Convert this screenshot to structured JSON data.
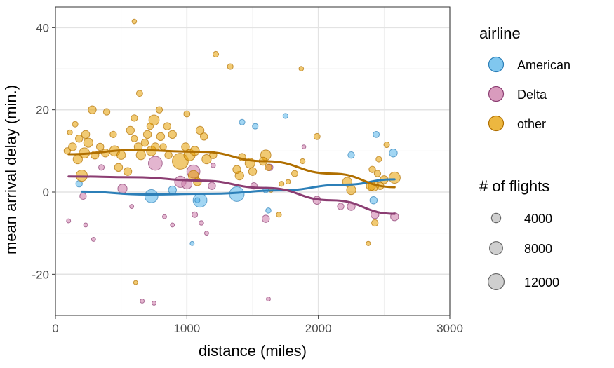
{
  "chart_data": {
    "type": "scatter",
    "xlabel": "distance (miles)",
    "ylabel": "mean arrival delay (min.)",
    "xlim": [
      0,
      3000
    ],
    "ylim": [
      -30,
      45
    ],
    "xticks": [
      0,
      1000,
      2000,
      3000
    ],
    "xtick_labels": [
      "0",
      "1000",
      "2000",
      "3000"
    ],
    "yticks": [
      -20,
      0,
      20,
      40
    ],
    "ytick_labels": [
      "-20",
      "0",
      "20",
      "40"
    ],
    "grid": true,
    "legend_color": {
      "title": "airline",
      "entries": [
        {
          "label": "American",
          "key": "american"
        },
        {
          "label": "Delta",
          "key": "delta"
        },
        {
          "label": "other",
          "key": "other"
        }
      ]
    },
    "legend_size": {
      "title": "# of flights",
      "entries": [
        {
          "label": "4000",
          "value": 4000
        },
        {
          "label": "8000",
          "value": 8000
        },
        {
          "label": "12000",
          "value": 12000
        }
      ]
    },
    "colors": {
      "american": {
        "fill": "#56B4E9",
        "line": "#2c7fb8"
      },
      "delta": {
        "fill": "#CC79A7",
        "line": "#8b3d72"
      },
      "other": {
        "fill": "#E69F00",
        "line": "#b06f00"
      }
    },
    "series": [
      {
        "key": "american",
        "points": [
          {
            "x": 180,
            "y": 2,
            "n": 2000
          },
          {
            "x": 730,
            "y": -1,
            "n": 8000
          },
          {
            "x": 890,
            "y": 0.5,
            "n": 3000
          },
          {
            "x": 1040,
            "y": -12.5,
            "n": 800
          },
          {
            "x": 1080,
            "y": -2,
            "n": 1200
          },
          {
            "x": 1100,
            "y": -2,
            "n": 9000
          },
          {
            "x": 1380,
            "y": -0.5,
            "n": 10000
          },
          {
            "x": 1420,
            "y": 17,
            "n": 1500
          },
          {
            "x": 1520,
            "y": 16,
            "n": 1500
          },
          {
            "x": 1600,
            "y": 0.5,
            "n": 1500
          },
          {
            "x": 1620,
            "y": -4.5,
            "n": 1300
          },
          {
            "x": 1750,
            "y": 18.5,
            "n": 1200
          },
          {
            "x": 2250,
            "y": 9,
            "n": 2000
          },
          {
            "x": 2420,
            "y": -2,
            "n": 2500
          },
          {
            "x": 2440,
            "y": 14,
            "n": 1800
          },
          {
            "x": 2570,
            "y": 9.5,
            "n": 3000
          }
        ],
        "trend": [
          [
            200,
            0.1
          ],
          [
            700,
            -0.6
          ],
          [
            1200,
            -0.4
          ],
          [
            1700,
            0.4
          ],
          [
            2200,
            1.8
          ],
          [
            2580,
            3.1
          ]
        ]
      },
      {
        "key": "delta",
        "points": [
          {
            "x": 100,
            "y": -7,
            "n": 800
          },
          {
            "x": 210,
            "y": -1,
            "n": 2000
          },
          {
            "x": 230,
            "y": -8,
            "n": 800
          },
          {
            "x": 290,
            "y": -11.5,
            "n": 800
          },
          {
            "x": 350,
            "y": 6,
            "n": 1500
          },
          {
            "x": 510,
            "y": 0.8,
            "n": 4000
          },
          {
            "x": 580,
            "y": -3.5,
            "n": 800
          },
          {
            "x": 660,
            "y": -26.5,
            "n": 800
          },
          {
            "x": 750,
            "y": -27,
            "n": 800
          },
          {
            "x": 760,
            "y": 7,
            "n": 9000
          },
          {
            "x": 830,
            "y": -6,
            "n": 800
          },
          {
            "x": 890,
            "y": -8,
            "n": 800
          },
          {
            "x": 950,
            "y": 2.5,
            "n": 6000
          },
          {
            "x": 1000,
            "y": 2,
            "n": 5000
          },
          {
            "x": 1050,
            "y": 5,
            "n": 8000
          },
          {
            "x": 1060,
            "y": -5.5,
            "n": 1500
          },
          {
            "x": 1110,
            "y": -7.5,
            "n": 1000
          },
          {
            "x": 1150,
            "y": -10,
            "n": 800
          },
          {
            "x": 1190,
            "y": 1.5,
            "n": 2500
          },
          {
            "x": 1200,
            "y": 6.5,
            "n": 1000
          },
          {
            "x": 1510,
            "y": 1.5,
            "n": 2000
          },
          {
            "x": 1600,
            "y": -6.5,
            "n": 2500
          },
          {
            "x": 1620,
            "y": -26,
            "n": 800
          },
          {
            "x": 1630,
            "y": 6,
            "n": 2000
          },
          {
            "x": 1890,
            "y": 11,
            "n": 700
          },
          {
            "x": 1990,
            "y": -2,
            "n": 3000
          },
          {
            "x": 2170,
            "y": -3.5,
            "n": 2000
          },
          {
            "x": 2250,
            "y": -3.5,
            "n": 3000
          },
          {
            "x": 2430,
            "y": -5.5,
            "n": 3000
          },
          {
            "x": 2580,
            "y": -6,
            "n": 3000
          }
        ],
        "trend": [
          [
            100,
            3.8
          ],
          [
            600,
            3.6
          ],
          [
            1100,
            2.8
          ],
          [
            1600,
            1.0
          ],
          [
            2100,
            -2.0
          ],
          [
            2580,
            -5.3
          ]
        ]
      },
      {
        "key": "other",
        "points": [
          {
            "x": 90,
            "y": 10,
            "n": 2000
          },
          {
            "x": 110,
            "y": 14.5,
            "n": 1200
          },
          {
            "x": 130,
            "y": 11,
            "n": 3000
          },
          {
            "x": 150,
            "y": 16.5,
            "n": 1500
          },
          {
            "x": 170,
            "y": 8,
            "n": 4000
          },
          {
            "x": 180,
            "y": 13,
            "n": 2500
          },
          {
            "x": 200,
            "y": 4,
            "n": 6000
          },
          {
            "x": 220,
            "y": 9.5,
            "n": 5000
          },
          {
            "x": 230,
            "y": 14,
            "n": 3000
          },
          {
            "x": 250,
            "y": 12,
            "n": 4000
          },
          {
            "x": 280,
            "y": 20,
            "n": 3000
          },
          {
            "x": 300,
            "y": 9,
            "n": 3000
          },
          {
            "x": 340,
            "y": 11,
            "n": 2500
          },
          {
            "x": 380,
            "y": 9.5,
            "n": 3000
          },
          {
            "x": 390,
            "y": 19.5,
            "n": 2000
          },
          {
            "x": 440,
            "y": 14,
            "n": 2000
          },
          {
            "x": 450,
            "y": 10,
            "n": 5000
          },
          {
            "x": 480,
            "y": 6,
            "n": 3000
          },
          {
            "x": 500,
            "y": 9,
            "n": 3500
          },
          {
            "x": 550,
            "y": 5,
            "n": 3000
          },
          {
            "x": 570,
            "y": 15,
            "n": 3000
          },
          {
            "x": 600,
            "y": 13,
            "n": 2000
          },
          {
            "x": 600,
            "y": 18,
            "n": 2000
          },
          {
            "x": 600,
            "y": 41.5,
            "n": 1000
          },
          {
            "x": 610,
            "y": -22,
            "n": 800
          },
          {
            "x": 630,
            "y": 11,
            "n": 3000
          },
          {
            "x": 640,
            "y": 24,
            "n": 1800
          },
          {
            "x": 650,
            "y": 9,
            "n": 4000
          },
          {
            "x": 680,
            "y": 12,
            "n": 2500
          },
          {
            "x": 700,
            "y": 14,
            "n": 3000
          },
          {
            "x": 720,
            "y": 16,
            "n": 2000
          },
          {
            "x": 730,
            "y": 10,
            "n": 4500
          },
          {
            "x": 750,
            "y": 17.5,
            "n": 5000
          },
          {
            "x": 760,
            "y": 11,
            "n": 3000
          },
          {
            "x": 790,
            "y": 20,
            "n": 2000
          },
          {
            "x": 800,
            "y": 13.5,
            "n": 3000
          },
          {
            "x": 820,
            "y": 11,
            "n": 2000
          },
          {
            "x": 850,
            "y": 16,
            "n": 2500
          },
          {
            "x": 860,
            "y": 9,
            "n": 2500
          },
          {
            "x": 890,
            "y": 14,
            "n": 3000
          },
          {
            "x": 950,
            "y": 7.5,
            "n": 12000
          },
          {
            "x": 990,
            "y": 11,
            "n": 3000
          },
          {
            "x": 1000,
            "y": 19,
            "n": 1800
          },
          {
            "x": 1020,
            "y": 9,
            "n": 6000
          },
          {
            "x": 1050,
            "y": 4,
            "n": 5000
          },
          {
            "x": 1060,
            "y": 10,
            "n": 4000
          },
          {
            "x": 1080,
            "y": 2.5,
            "n": 3000
          },
          {
            "x": 1100,
            "y": 15,
            "n": 3000
          },
          {
            "x": 1130,
            "y": 13.5,
            "n": 2500
          },
          {
            "x": 1150,
            "y": 8,
            "n": 4000
          },
          {
            "x": 1200,
            "y": 9,
            "n": 2500
          },
          {
            "x": 1220,
            "y": 33.5,
            "n": 1500
          },
          {
            "x": 1330,
            "y": 30.5,
            "n": 1500
          },
          {
            "x": 1380,
            "y": 5.5,
            "n": 3000
          },
          {
            "x": 1400,
            "y": 4,
            "n": 3500
          },
          {
            "x": 1420,
            "y": 8.5,
            "n": 2500
          },
          {
            "x": 1480,
            "y": 7,
            "n": 4500
          },
          {
            "x": 1500,
            "y": 5,
            "n": 3000
          },
          {
            "x": 1580,
            "y": 7.5,
            "n": 3000
          },
          {
            "x": 1600,
            "y": 9,
            "n": 5000
          },
          {
            "x": 1620,
            "y": 6,
            "n": 2000
          },
          {
            "x": 1640,
            "y": 0.5,
            "n": 1000
          },
          {
            "x": 1700,
            "y": -5.5,
            "n": 1200
          },
          {
            "x": 1720,
            "y": 2,
            "n": 1200
          },
          {
            "x": 1770,
            "y": 2.5,
            "n": 1000
          },
          {
            "x": 1820,
            "y": 4.5,
            "n": 1800
          },
          {
            "x": 1870,
            "y": 30,
            "n": 1000
          },
          {
            "x": 1880,
            "y": 7.5,
            "n": 1200
          },
          {
            "x": 1990,
            "y": 13.5,
            "n": 1800
          },
          {
            "x": 2220,
            "y": 2.5,
            "n": 4000
          },
          {
            "x": 2250,
            "y": 0.5,
            "n": 4000
          },
          {
            "x": 2380,
            "y": -12.5,
            "n": 900
          },
          {
            "x": 2400,
            "y": 1.5,
            "n": 4000
          },
          {
            "x": 2410,
            "y": 5.5,
            "n": 2000
          },
          {
            "x": 2420,
            "y": 1.5,
            "n": 5000
          },
          {
            "x": 2430,
            "y": -7.5,
            "n": 2000
          },
          {
            "x": 2450,
            "y": 4.5,
            "n": 2000
          },
          {
            "x": 2460,
            "y": 8,
            "n": 1500
          },
          {
            "x": 2470,
            "y": 1.5,
            "n": 2500
          },
          {
            "x": 2500,
            "y": 3,
            "n": 3000
          },
          {
            "x": 2520,
            "y": 11.5,
            "n": 1500
          },
          {
            "x": 2580,
            "y": 3.5,
            "n": 6000
          }
        ],
        "trend": [
          [
            100,
            9.2
          ],
          [
            600,
            10.2
          ],
          [
            1100,
            9.8
          ],
          [
            1600,
            7.5
          ],
          [
            2100,
            4.5
          ],
          [
            2580,
            1.2
          ]
        ]
      }
    ]
  }
}
